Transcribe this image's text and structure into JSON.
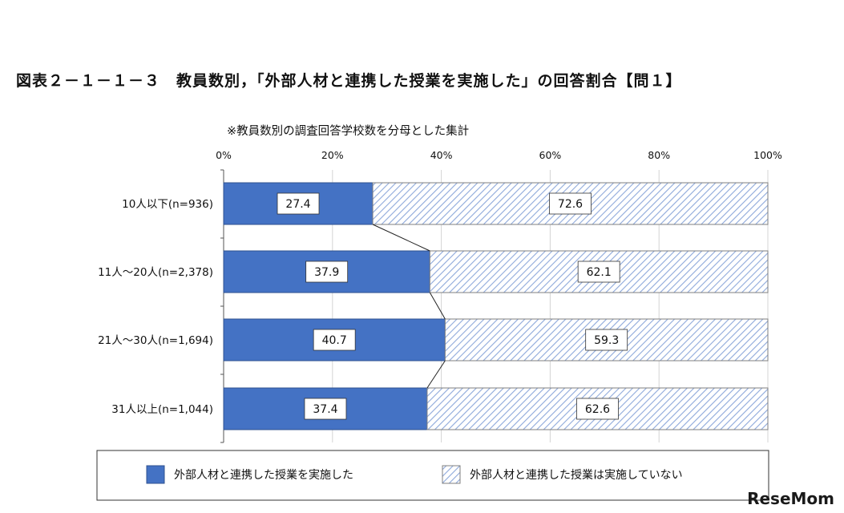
{
  "title": "図表２－１－１－３　教員数別，「外部人材と連携した授業を実施した」の回答割合【問１】",
  "watermark": "ReseMom",
  "chart_data": {
    "type": "bar",
    "orientation": "horizontal",
    "stacked": true,
    "subtitle": "※教員数別の調査回答学校数を分母とした集計",
    "categories": [
      "10人以下(n=936)",
      "11人～20人(n=2,378)",
      "21人～30人(n=1,694)",
      "31人以上(n=1,044)"
    ],
    "series": [
      {
        "name": "外部人材と連携した授業を実施した",
        "values": [
          27.4,
          37.9,
          40.7,
          37.4
        ],
        "color": "#4472c4",
        "fill": "solid"
      },
      {
        "name": "外部人材と連携した授業は実施していない",
        "values": [
          72.6,
          62.1,
          59.3,
          62.6
        ],
        "color": "#8ea9db",
        "fill": "hatched"
      }
    ],
    "value_labels": [
      [
        "27.4",
        "37.9",
        "40.7",
        "37.4"
      ],
      [
        "72.6",
        "62.1",
        "59.3",
        "62.6"
      ]
    ],
    "xticks": [
      "0%",
      "20%",
      "40%",
      "60%",
      "80%",
      "100%"
    ],
    "xlim": [
      0,
      100
    ],
    "xaxis_position": "top",
    "gridlines": true,
    "series_lines": true,
    "legend_position": "bottom"
  }
}
